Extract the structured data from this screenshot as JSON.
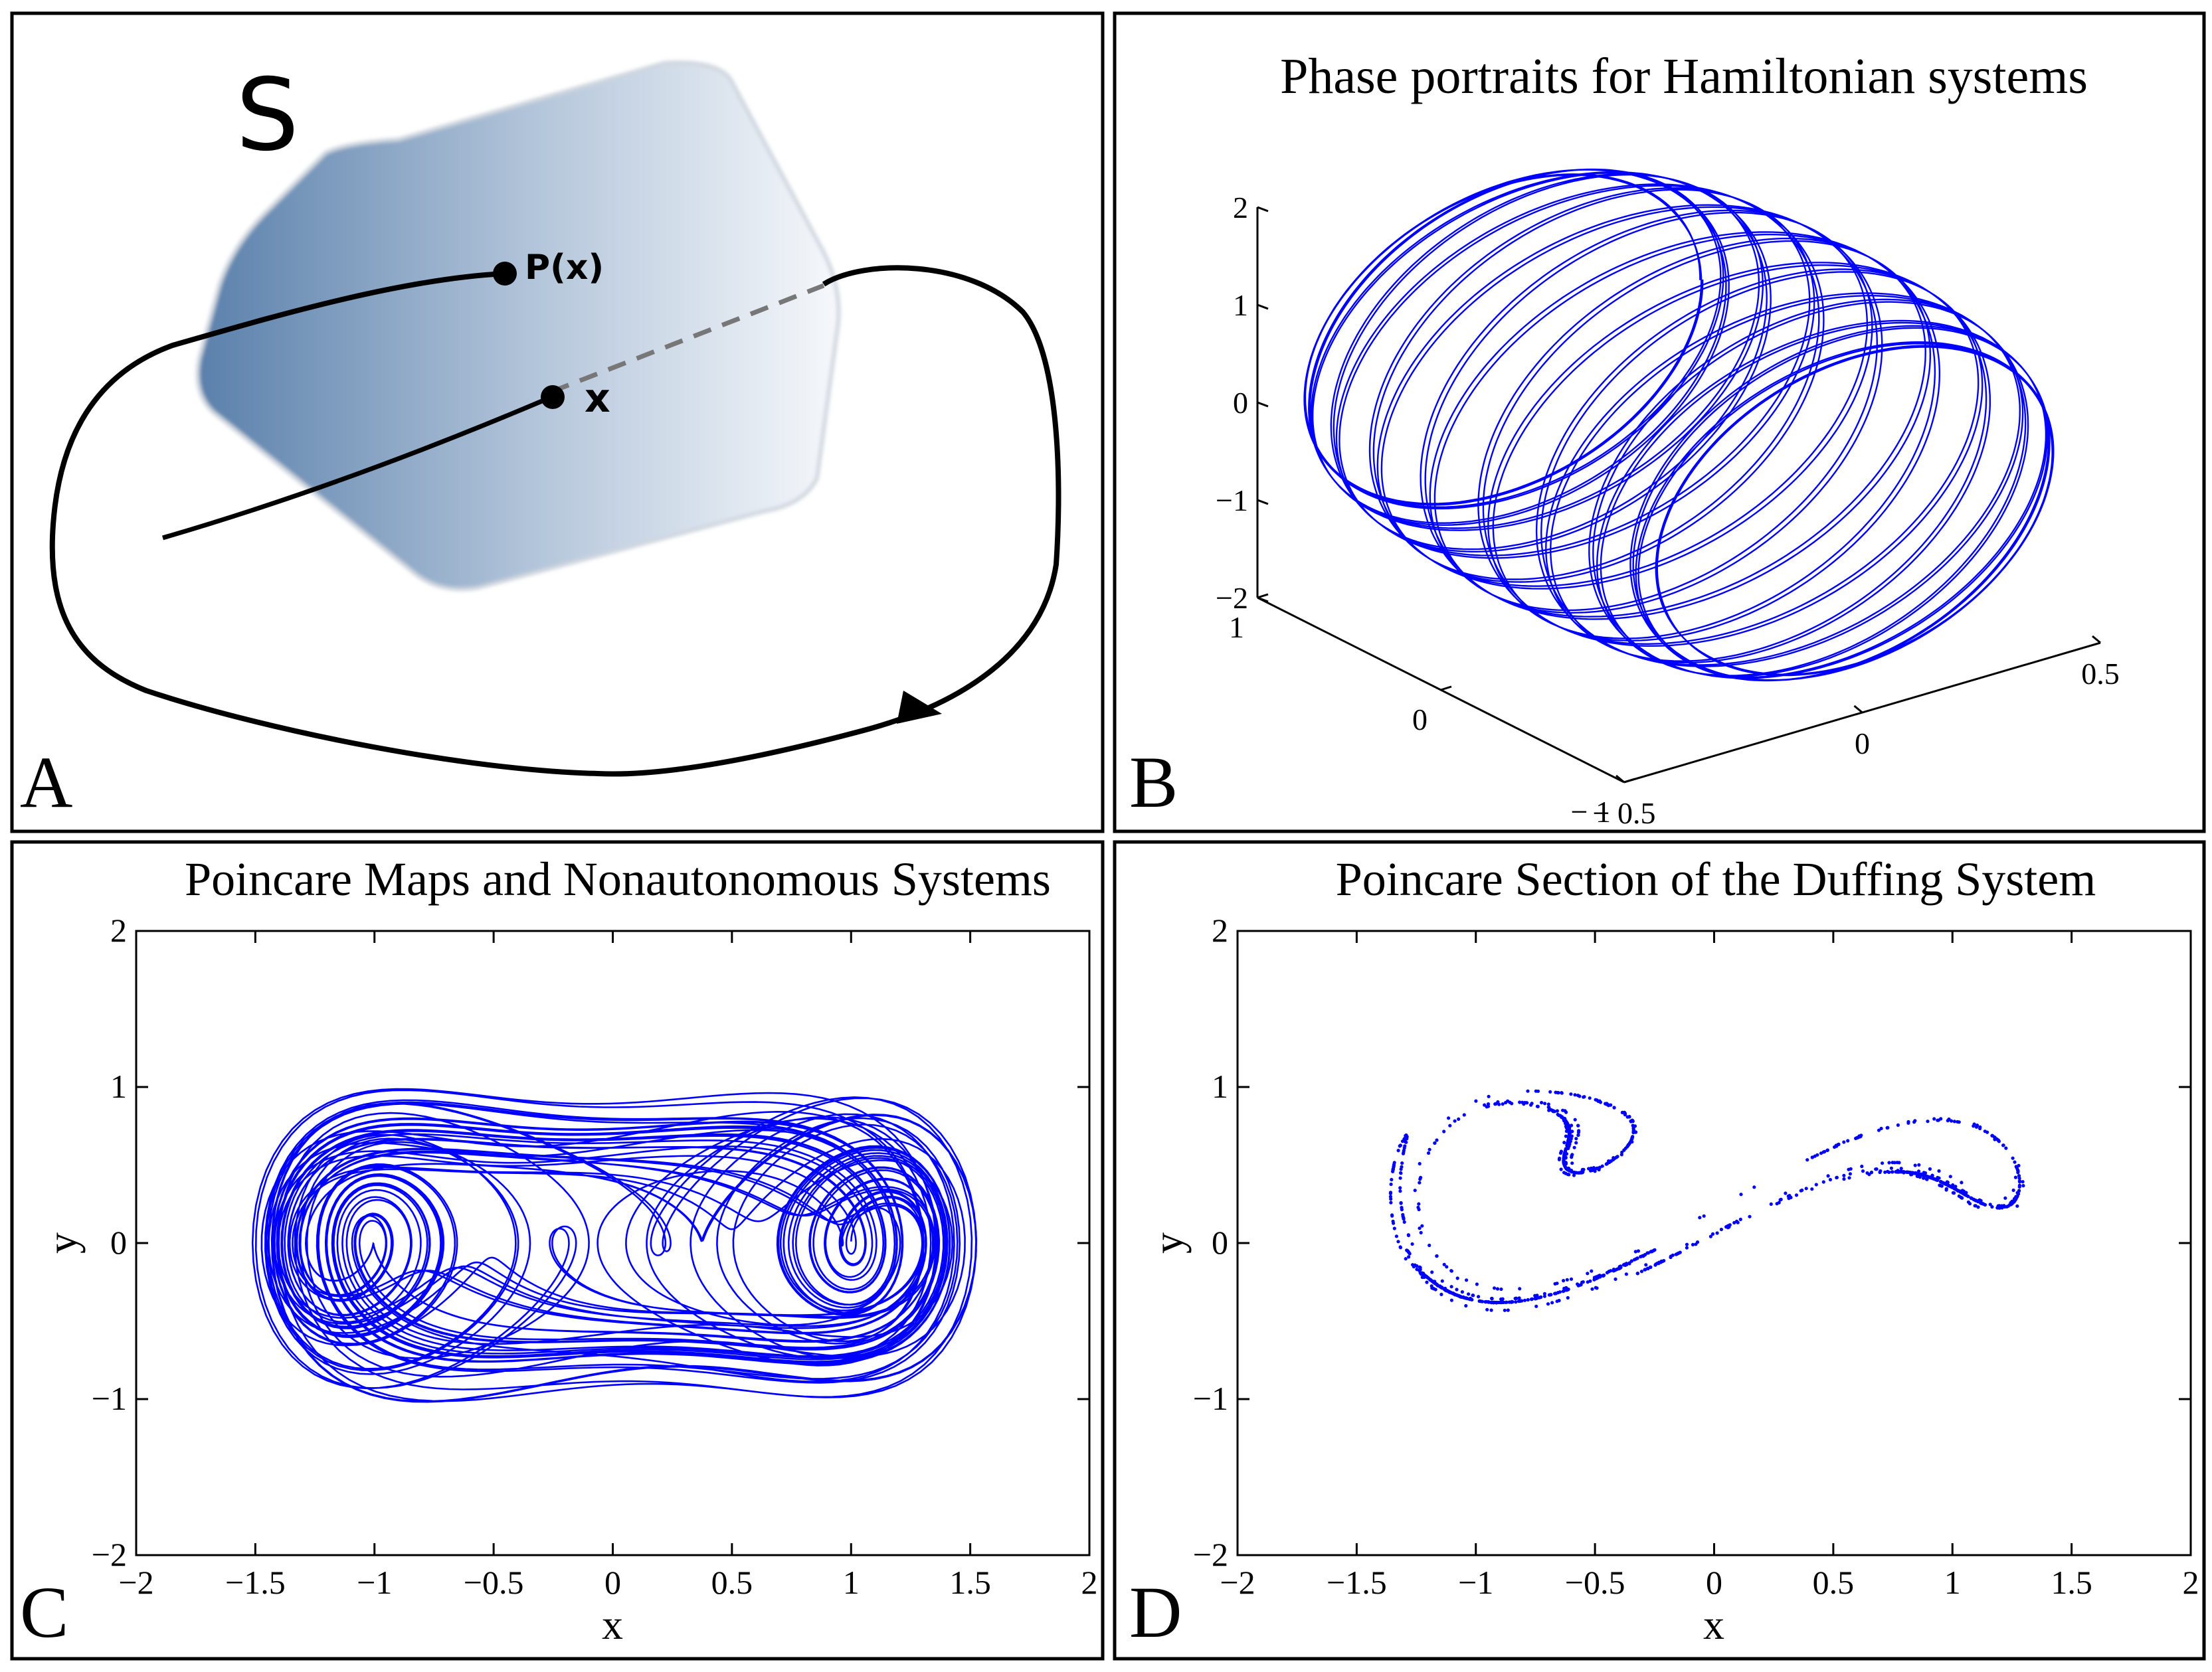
{
  "chart_data": [
    {
      "panel": "A",
      "type": "diagram",
      "surface_label": "S",
      "point_labels": [
        "P(x)",
        "x"
      ]
    },
    {
      "panel": "B",
      "type": "line",
      "title": "Phase portraits for Hamiltonian systems",
      "projection": "3d",
      "z_ticks": [
        "2",
        "1",
        "0",
        "−1",
        "−2"
      ],
      "y_ticks": [
        "1",
        "0",
        "− 1"
      ],
      "x_ticks": [
        "− 0.5",
        "0",
        "0.5"
      ],
      "zlim": [
        -2,
        2
      ],
      "ylim": [
        -1,
        1
      ],
      "xlim": [
        -0.5,
        0.5
      ],
      "series": [
        {
          "name": "trajectory",
          "color": "#0000ff",
          "shape": "torus-like quasi-periodic orbit"
        }
      ]
    },
    {
      "panel": "C",
      "type": "line",
      "title": "Poincare Maps and Nonautonomous Systems",
      "xlabel": "x",
      "ylabel": "y",
      "xlim": [
        -2,
        2
      ],
      "ylim": [
        -2,
        2
      ],
      "x_ticks": [
        "−2",
        "−1.5",
        "−1",
        "−0.5",
        "0",
        "0.5",
        "1",
        "1.5",
        "2"
      ],
      "y_ticks": [
        "2",
        "1",
        "0",
        "−1",
        "−2"
      ],
      "series": [
        {
          "name": "Duffing trajectory",
          "color": "#0000ff",
          "x_range": [
            -1.45,
            1.5
          ],
          "y_range": [
            -0.95,
            0.88
          ]
        }
      ]
    },
    {
      "panel": "D",
      "type": "scatter",
      "title": "Poincare Section of the Duffing System",
      "xlabel": "x",
      "ylabel": "y",
      "xlim": [
        -2,
        2
      ],
      "ylim": [
        -2,
        2
      ],
      "x_ticks": [
        "−2",
        "−1.5",
        "−1",
        "−0.5",
        "0",
        "0.5",
        "1",
        "1.5",
        "2"
      ],
      "y_ticks": [
        "2",
        "1",
        "0",
        "−1",
        "−2"
      ],
      "series": [
        {
          "name": "Poincare section",
          "color": "#0000ff",
          "x_range": [
            -1.35,
            1.28
          ],
          "y_range": [
            -0.45,
            0.98
          ]
        }
      ]
    }
  ],
  "panel_letters": [
    "A",
    "B",
    "C",
    "D"
  ],
  "colors": {
    "trajectory": "#0000ff",
    "frame": "#000000",
    "surface_dark": "#5a80ab",
    "surface_light": "#f6f8fb"
  }
}
